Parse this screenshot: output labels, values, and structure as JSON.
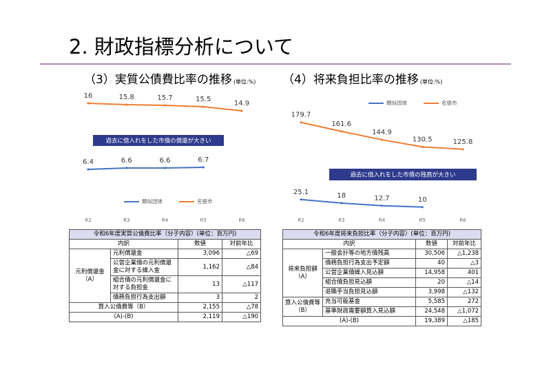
{
  "header": {
    "title": "2. 財政指標分析について"
  },
  "chart_data": [
    {
      "type": "line",
      "title": "（3）実質公債費比率の推移",
      "unit": "(単位:%)",
      "categories": [
        "R2",
        "R3",
        "R4",
        "R5",
        "R6"
      ],
      "series": [
        {
          "name": "類似団体",
          "color": "#4472c4",
          "values": [
            6.4,
            6.6,
            6.6,
            6.7,
            null
          ]
        },
        {
          "name": "名張市",
          "color": "#ed7d31",
          "values": [
            16,
            15.8,
            15.7,
            15.5,
            14.9
          ]
        }
      ],
      "ylim": [
        0,
        18
      ],
      "legend": "bottom",
      "annotation": "過去に借入れをした市債の償還が大きい"
    },
    {
      "type": "line",
      "title": "（4）将来負担比率の推移",
      "unit": "(単位:%)",
      "categories": [
        "R2",
        "R3",
        "R4",
        "R5",
        "R6"
      ],
      "series": [
        {
          "name": "類似団体",
          "color": "#4472c4",
          "values": [
            25.1,
            18,
            12.7,
            10,
            null
          ]
        },
        {
          "name": "名張市",
          "color": "#ed7d31",
          "values": [
            179.7,
            161.6,
            144.9,
            130.5,
            125.8
          ]
        }
      ],
      "ylim": [
        0,
        200
      ],
      "legend": "top",
      "annotation": "過去に借入れをした市債の残高が大きい"
    }
  ],
  "tables": [
    {
      "title": "令和6年度実質公債費比率（分子内容）(単位：百万円)",
      "header": [
        "内訳",
        "数値",
        "対前年比"
      ],
      "groups": [
        {
          "label": "元利償還金（A）",
          "rows": [
            [
              "元利償還金",
              "3,096",
              "△69"
            ],
            [
              "公営企業債の元利償還金に対する繰入金",
              "1,162",
              "△84"
            ],
            [
              "組合債の元利償還金に対する負担金",
              "13",
              "△117"
            ],
            [
              "債務負担行為支出額",
              "3",
              "2"
            ]
          ]
        }
      ],
      "totals": [
        [
          "算入公債費等（B）",
          "2,155",
          "△78"
        ],
        [
          "(A)-(B)",
          "2,119",
          "△190"
        ]
      ]
    },
    {
      "title": "令和6年度将来負担比率（分子内容）(単位：百万円)",
      "header": [
        "内訳",
        "数値",
        "対前年比"
      ],
      "groups": [
        {
          "label": "将来負担額（A）",
          "rows": [
            [
              "一般会計等の地方債残高",
              "30,506",
              "△1,238"
            ],
            [
              "債務負担行為支出予定額",
              "40",
              "△3"
            ],
            [
              "公営企業債繰入見込額",
              "14,958",
              "401"
            ],
            [
              "組合債負担見込額",
              "20",
              "△14"
            ],
            [
              "退職手当負担見込額",
              "3,998",
              "△132"
            ]
          ]
        },
        {
          "label": "算入公債費等（B）",
          "rows": [
            [
              "充当可能基金",
              "5,585",
              "272"
            ],
            [
              "基準財政需要額算入見込額",
              "24,548",
              "△1,072"
            ]
          ]
        }
      ],
      "totals": [
        [
          "(A)-(B)",
          "19,389",
          "△185"
        ]
      ]
    }
  ]
}
